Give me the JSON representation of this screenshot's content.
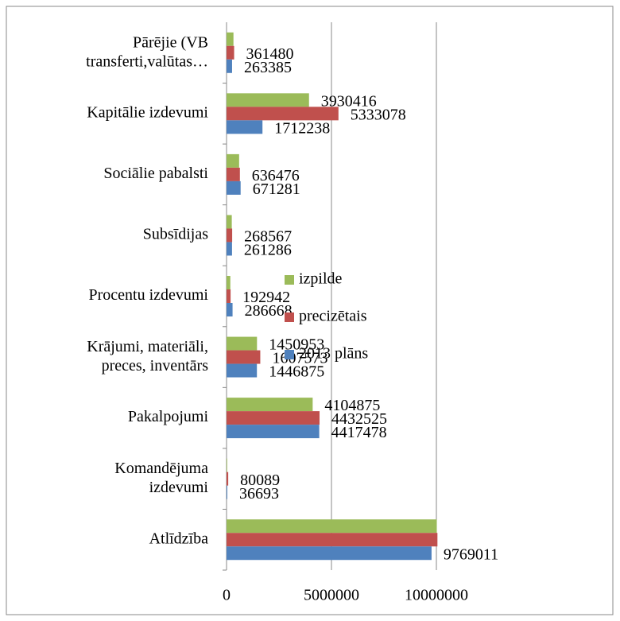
{
  "chart_data": {
    "type": "bar",
    "orientation": "horizontal",
    "categories": [
      "Atlīdzība",
      "Komandējuma\nizdevumi",
      "Pakalpojumi",
      "Krājumi, materiāli,\npreces, inventārs",
      "Procentu izdevumi",
      "Subsīdijas",
      "Sociālie pabalsti",
      "Kapitālie izdevumi",
      "Pārējie (VB\ntransferti,valūtas…"
    ],
    "series": [
      {
        "name": "izpilde",
        "color": "#9bbb59",
        "values": [
          10020000,
          30000,
          4104875,
          1450953,
          180000,
          250000,
          600000,
          3930416,
          330000
        ],
        "value_labels": [
          null,
          null,
          "4104875",
          "1450953",
          null,
          null,
          null,
          "3930416",
          null
        ]
      },
      {
        "name": "precizētais",
        "color": "#c0504d",
        "values": [
          10050000,
          80089,
          4432525,
          1607573,
          192942,
          268567,
          636476,
          5333078,
          361480
        ],
        "value_labels": [
          null,
          "80089",
          "4432525",
          "1607573",
          "192942",
          "268567",
          "636476",
          "5333078",
          "361480"
        ]
      },
      {
        "name": "2013 plāns",
        "color": "#4f81bd",
        "values": [
          9769011,
          36693,
          4417478,
          1446875,
          286668,
          261286,
          671281,
          1712238,
          263385
        ],
        "value_labels": [
          "9769011",
          "36693",
          "4417478",
          "1446875",
          "286668",
          "261286",
          "671281",
          "1712238",
          "263385"
        ]
      }
    ],
    "xlim": [
      0,
      10000000
    ],
    "xticks": [
      0,
      5000000,
      10000000
    ],
    "grid": true,
    "legend": "right"
  }
}
